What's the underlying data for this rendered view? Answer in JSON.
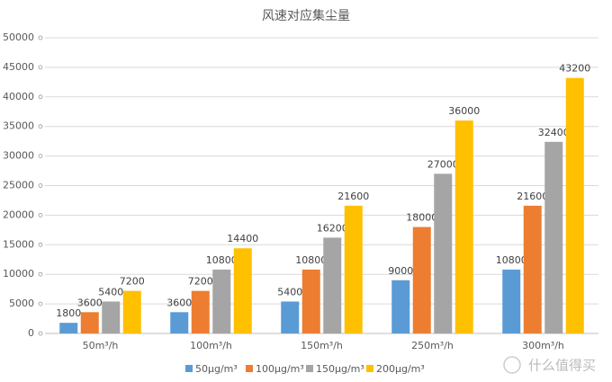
{
  "chart_data": {
    "type": "bar",
    "title": "风速对应集尘量",
    "categories": [
      "50m³/h",
      "100m³/h",
      "150m³/h",
      "250m³/h",
      "300m³/h"
    ],
    "series": [
      {
        "name": "50μg/m³",
        "color": "#5b9bd5",
        "values": [
          1800,
          3600,
          5400,
          9000,
          10800
        ]
      },
      {
        "name": "100μg/m³",
        "color": "#ed7d31",
        "values": [
          3600,
          7200,
          10800,
          18000,
          21600
        ]
      },
      {
        "name": "150μg/m³",
        "color": "#a5a5a5",
        "values": [
          5400,
          10800,
          16200,
          27000,
          32400
        ]
      },
      {
        "name": "200μg/m³",
        "color": "#ffc000",
        "values": [
          7200,
          14400,
          21600,
          36000,
          43200
        ]
      }
    ],
    "ylim": [
      0,
      50000
    ],
    "yticks": [
      0,
      5000,
      10000,
      15000,
      20000,
      25000,
      30000,
      35000,
      40000,
      45000,
      50000
    ],
    "grid": true,
    "legend": "bottom",
    "watermark": "什么值得买"
  }
}
